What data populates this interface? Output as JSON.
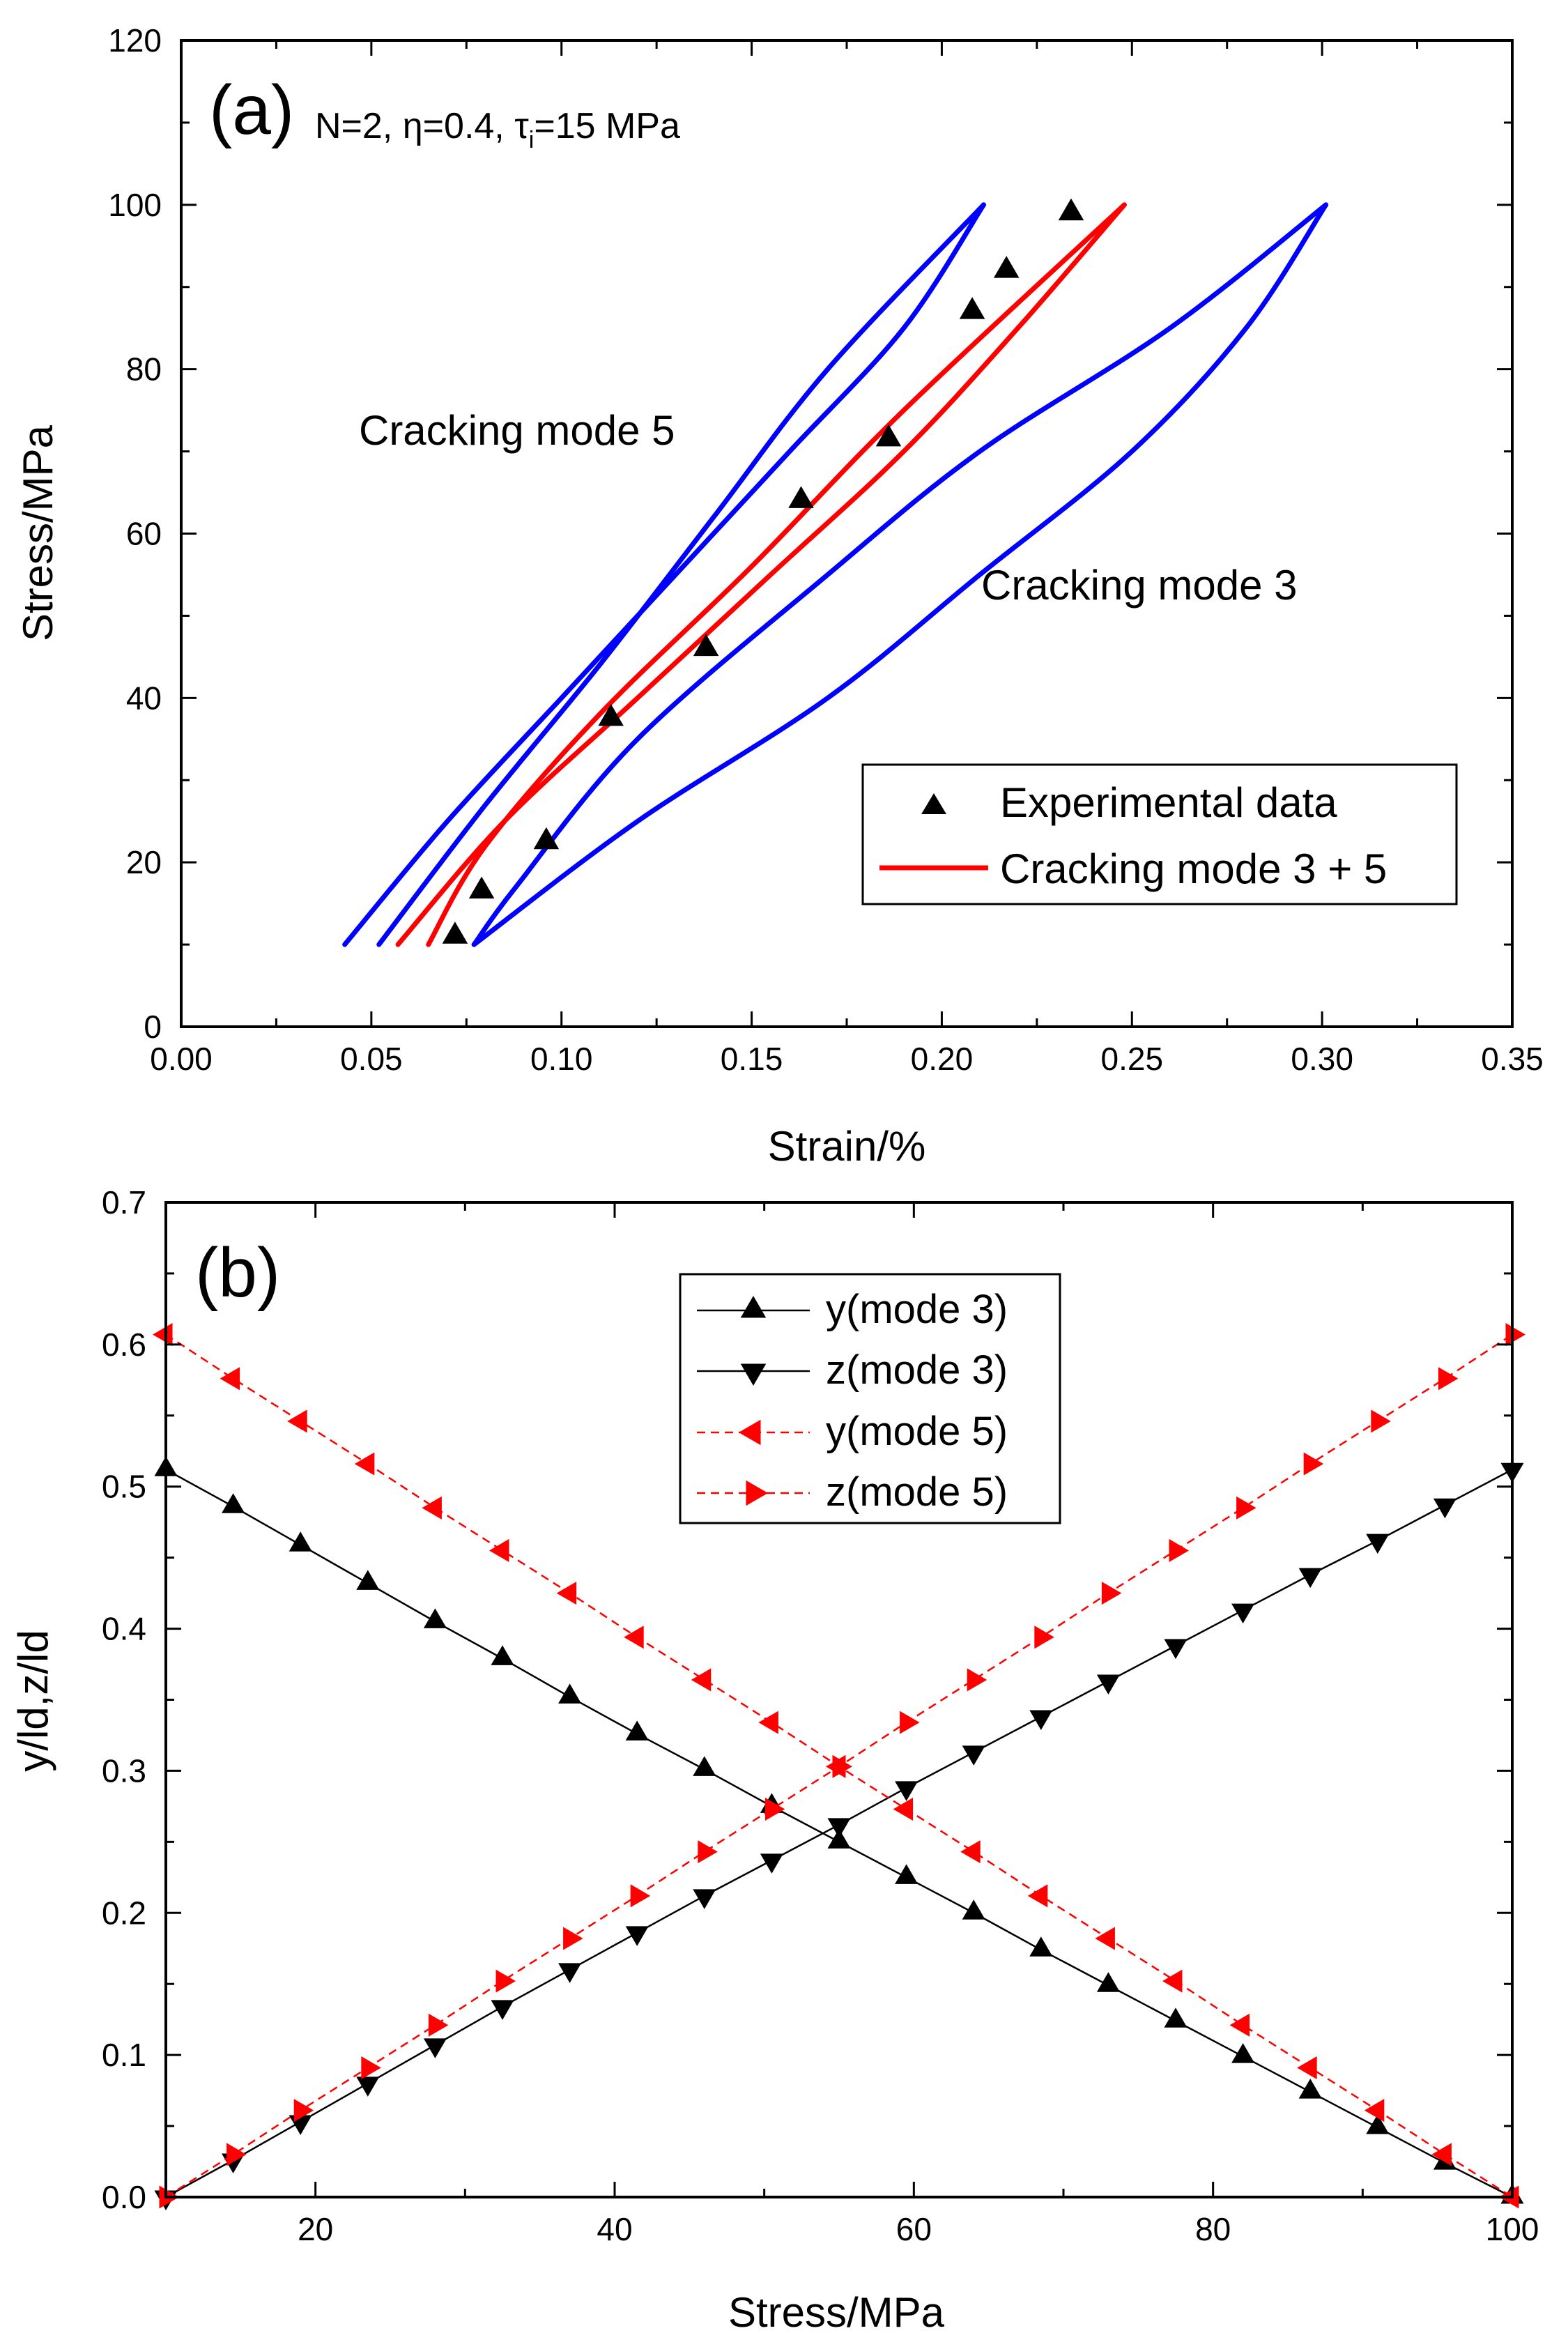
{
  "chart_data": [
    {
      "type": "line",
      "panel_label": "(a)",
      "annotation_parts": [
        "N=2, ",
        "η",
        "=0.4, ",
        "τ",
        "i",
        "=15 MPa"
      ],
      "xlabel": "Strain/%",
      "ylabel": "Stress/MPa",
      "xlim": [
        0,
        0.35
      ],
      "ylim": [
        0,
        120
      ],
      "xticks": [
        0.0,
        0.05,
        0.1,
        0.15,
        0.2,
        0.25,
        0.3,
        0.35
      ],
      "xtick_labels": [
        "0.00",
        "0.05",
        "0.10",
        "0.15",
        "0.20",
        "0.25",
        "0.30",
        "0.35"
      ],
      "yticks": [
        0,
        20,
        40,
        60,
        80,
        100,
        120
      ],
      "ytick_labels": [
        "0",
        "20",
        "40",
        "60",
        "80",
        "100",
        "120"
      ],
      "text_labels": [
        "Cracking mode 5",
        "Cracking mode 3"
      ],
      "legend": {
        "position": "bottom-right",
        "entries": [
          "Experimental data",
          "Cracking mode 3 + 5"
        ]
      },
      "series": [
        {
          "name": "Cracking mode 5",
          "color": "#0000ff",
          "style": "loop",
          "loading": [
            [
              0.043,
              10
            ],
            [
              0.07,
              25
            ],
            [
              0.1,
              40
            ],
            [
              0.13,
              55
            ],
            [
              0.16,
              70
            ],
            [
              0.19,
              85
            ],
            [
              0.211,
              100
            ]
          ],
          "unloading": [
            [
              0.211,
              100
            ],
            [
              0.17,
              80
            ],
            [
              0.14,
              62
            ],
            [
              0.11,
              44
            ],
            [
              0.08,
              27
            ],
            [
              0.052,
              10
            ]
          ]
        },
        {
          "name": "Cracking mode 3",
          "color": "#0000ff",
          "style": "loop",
          "loading": [
            [
              0.077,
              10
            ],
            [
              0.12,
              25
            ],
            [
              0.17,
              40
            ],
            [
              0.21,
              55
            ],
            [
              0.25,
              70
            ],
            [
              0.28,
              85
            ],
            [
              0.301,
              100
            ]
          ],
          "unloading": [
            [
              0.301,
              100
            ],
            [
              0.26,
              85
            ],
            [
              0.21,
              70
            ],
            [
              0.17,
              55
            ],
            [
              0.12,
              35
            ],
            [
              0.088,
              17
            ],
            [
              0.077,
              10
            ]
          ]
        },
        {
          "name": "Cracking mode 3 + 5",
          "color": "#ff0000",
          "style": "loop",
          "loading": [
            [
              0.057,
              10
            ],
            [
              0.085,
              25
            ],
            [
              0.12,
              40
            ],
            [
              0.155,
              55
            ],
            [
              0.19,
              70
            ],
            [
              0.22,
              85
            ],
            [
              0.248,
              100
            ]
          ],
          "unloading": [
            [
              0.248,
              100
            ],
            [
              0.19,
              75
            ],
            [
              0.15,
              56
            ],
            [
              0.11,
              38
            ],
            [
              0.08,
              22
            ],
            [
              0.065,
              10
            ]
          ]
        },
        {
          "name": "Experimental data",
          "color": "#000000",
          "style": "marker-triangle-up",
          "points": [
            [
              0.072,
              11
            ],
            [
              0.079,
              16.5
            ],
            [
              0.096,
              22.5
            ],
            [
              0.113,
              37.5
            ],
            [
              0.138,
              46
            ],
            [
              0.163,
              64
            ],
            [
              0.186,
              71.5
            ],
            [
              0.208,
              87
            ],
            [
              0.217,
              92
            ],
            [
              0.234,
              99
            ]
          ]
        }
      ]
    },
    {
      "type": "line",
      "panel_label": "(b)",
      "xlabel": "Stress/MPa",
      "ylabel": "y/ld,z/ld",
      "xlim": [
        10,
        100
      ],
      "ylim": [
        0,
        0.7
      ],
      "xticks": [
        20,
        40,
        60,
        80,
        100
      ],
      "xtick_labels": [
        "20",
        "40",
        "60",
        "80",
        "100"
      ],
      "yticks": [
        0.0,
        0.1,
        0.2,
        0.3,
        0.4,
        0.5,
        0.6,
        0.7
      ],
      "ytick_labels": [
        "0.0",
        "0.1",
        "0.2",
        "0.3",
        "0.4",
        "0.5",
        "0.6",
        "0.7"
      ],
      "legend": {
        "position": "top-center",
        "entries": [
          "y(mode 3)",
          "z(mode 3)",
          "y(mode 5)",
          "z(mode 5)"
        ]
      },
      "x": [
        10,
        14.5,
        19,
        23.5,
        28,
        32.5,
        37,
        41.5,
        46,
        50.5,
        55,
        59.5,
        64,
        68.5,
        73,
        77.5,
        82,
        86.5,
        91,
        95.5,
        100
      ],
      "series": [
        {
          "name": "y(mode 3)",
          "color": "#000000",
          "marker": "triangle-up",
          "dash": "none",
          "values": [
            0.512,
            0.486,
            0.459,
            0.432,
            0.405,
            0.379,
            0.352,
            0.326,
            0.301,
            0.275,
            0.25,
            0.225,
            0.2,
            0.174,
            0.149,
            0.124,
            0.099,
            0.074,
            0.049,
            0.024,
            0.0
          ]
        },
        {
          "name": "z(mode 3)",
          "color": "#000000",
          "marker": "triangle-down",
          "dash": "none",
          "values": [
            0.0,
            0.026,
            0.053,
            0.08,
            0.107,
            0.134,
            0.16,
            0.186,
            0.212,
            0.237,
            0.262,
            0.288,
            0.313,
            0.338,
            0.363,
            0.388,
            0.413,
            0.438,
            0.462,
            0.487,
            0.512
          ]
        },
        {
          "name": "y(mode 5)",
          "color": "#ff0000",
          "marker": "triangle-left",
          "dash": "12,8",
          "values": [
            0.607,
            0.576,
            0.546,
            0.516,
            0.485,
            0.455,
            0.425,
            0.394,
            0.364,
            0.334,
            0.303,
            0.273,
            0.243,
            0.212,
            0.182,
            0.152,
            0.121,
            0.091,
            0.061,
            0.03,
            0.0
          ]
        },
        {
          "name": "z(mode 5)",
          "color": "#ff0000",
          "marker": "triangle-right",
          "dash": "12,8",
          "values": [
            0.0,
            0.03,
            0.061,
            0.091,
            0.121,
            0.152,
            0.182,
            0.212,
            0.243,
            0.273,
            0.303,
            0.334,
            0.364,
            0.394,
            0.425,
            0.455,
            0.485,
            0.516,
            0.546,
            0.576,
            0.607
          ]
        }
      ]
    }
  ]
}
